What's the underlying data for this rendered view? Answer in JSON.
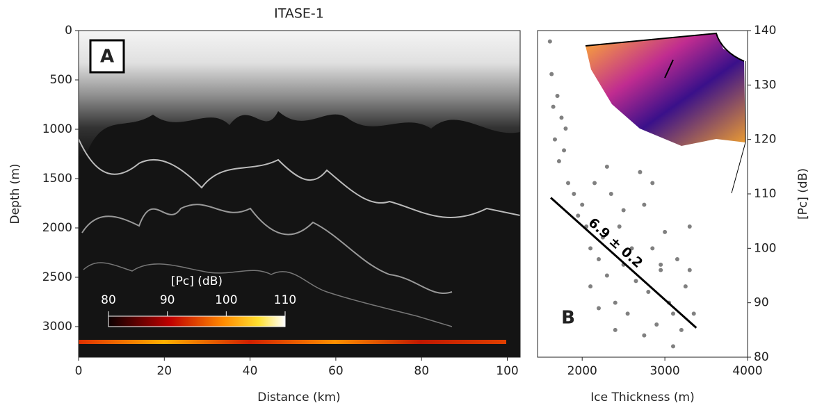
{
  "chart_data": [
    {
      "type": "radargram",
      "title": "ITASE-1",
      "panel_label": "A",
      "x_label": "Distance (km)",
      "y_label": "Depth (m)",
      "xlim": [
        0,
        103
      ],
      "xticks": [
        0,
        20,
        40,
        60,
        80,
        100
      ],
      "ylim": [
        3310,
        0
      ],
      "yticks": [
        0,
        500,
        1000,
        1500,
        2000,
        2500,
        3000
      ],
      "colorbar": {
        "label": "[Pc] (dB)",
        "lim": [
          80,
          110
        ],
        "ticks": [
          80,
          90,
          100,
          110
        ]
      }
    },
    {
      "type": "scatter",
      "panel_label": "B",
      "x_label": "Ice Thickness (m)",
      "y_label": "[Pc] (dB)",
      "xlim": [
        1460,
        4000
      ],
      "xticks": [
        2000,
        3000,
        4000
      ],
      "ylim": [
        80,
        140
      ],
      "yticks": [
        80,
        90,
        100,
        110,
        120,
        130,
        140
      ],
      "color": "#808080",
      "x": [
        1610,
        1630,
        1650,
        1670,
        1700,
        1720,
        1750,
        1780,
        1800,
        1830,
        1900,
        1950,
        2000,
        2050,
        2100,
        2150,
        2200,
        2250,
        2300,
        2350,
        2400,
        2450,
        2500,
        2550,
        2600,
        2650,
        2700,
        2750,
        2800,
        2850,
        2900,
        2950,
        3000,
        3050,
        3100,
        3150,
        3200,
        3250,
        3300,
        3350,
        2200,
        2300,
        2400,
        2500,
        2750,
        2850,
        2950,
        3100,
        3300,
        2100
      ],
      "y": [
        138,
        132,
        126,
        120,
        128,
        116,
        124,
        118,
        122,
        112,
        110,
        106,
        108,
        104,
        100,
        112,
        98,
        102,
        95,
        110,
        90,
        104,
        97,
        88,
        100,
        94,
        114,
        108,
        92,
        100,
        86,
        96,
        103,
        90,
        88,
        98,
        85,
        93,
        96,
        88,
        89,
        115,
        85,
        107,
        84,
        112,
        97,
        82,
        104,
        93
      ],
      "fit": {
        "x": [
          1620,
          3380
        ],
        "y": [
          109.3,
          85.4
        ],
        "color": "#000000",
        "annotation": "6.9 ± 0.2"
      }
    }
  ]
}
